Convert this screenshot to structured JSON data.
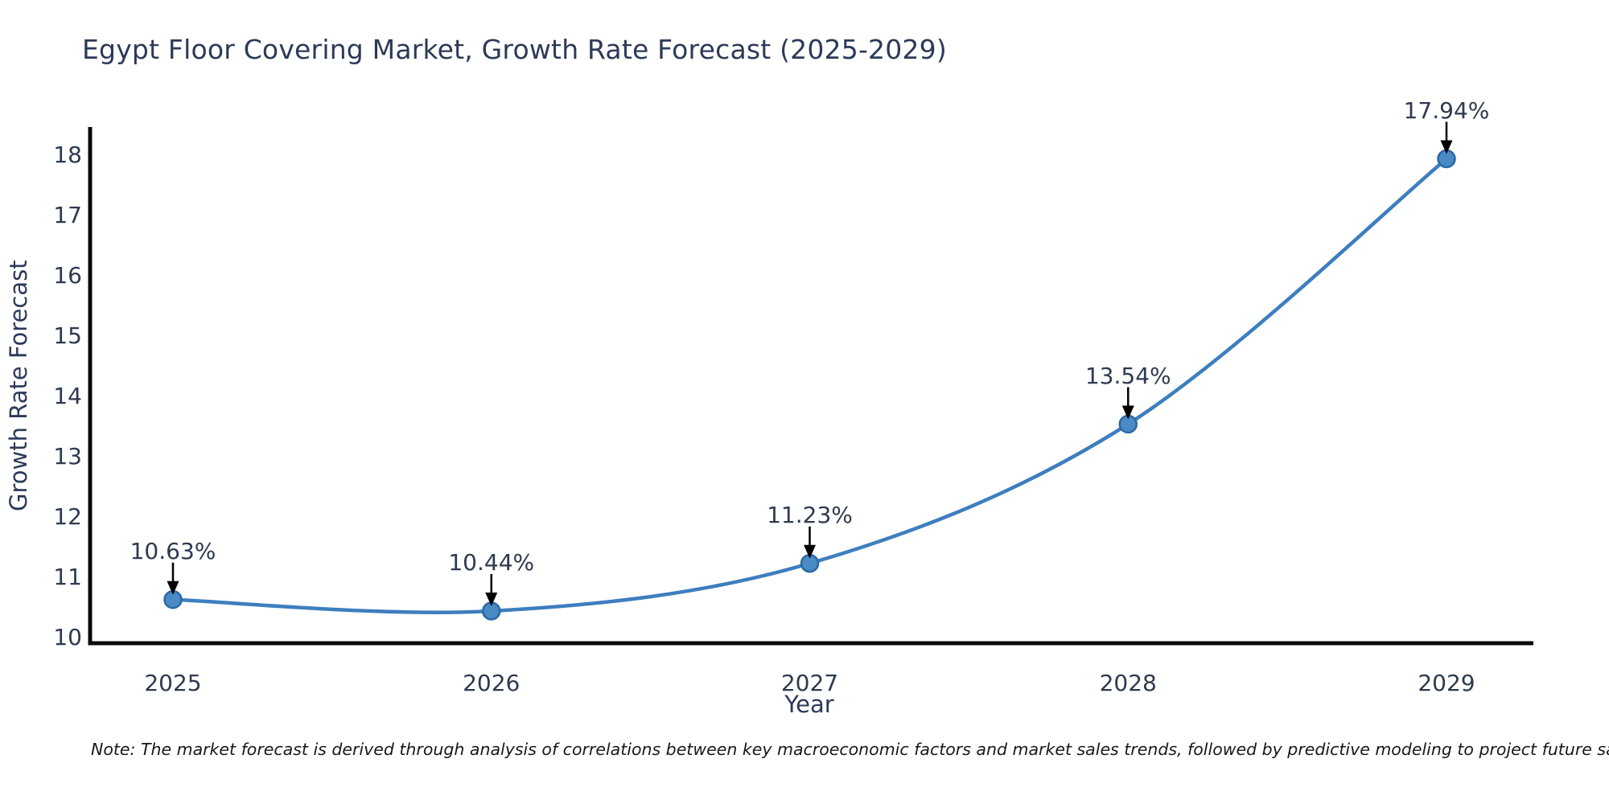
{
  "chart_data": {
    "type": "line",
    "title": "Egypt Floor Covering Market, Growth Rate Forecast (2025-2029)",
    "xlabel": "Year",
    "ylabel": "Growth Rate Forecast",
    "categories": [
      2025,
      2026,
      2027,
      2028,
      2029
    ],
    "series": [
      {
        "name": "Growth Rate Forecast",
        "values": [
          10.63,
          10.44,
          11.23,
          13.54,
          17.94
        ]
      }
    ],
    "point_labels": [
      "10.63%",
      "10.44%",
      "11.23%",
      "13.54%",
      "17.94%"
    ],
    "yticks": [
      10,
      11,
      12,
      13,
      14,
      15,
      16,
      17,
      18
    ],
    "ylim": [
      9.9,
      18.55
    ],
    "xlim": [
      2024.73,
      2029.27
    ],
    "grid": false,
    "legend": "none",
    "smooth": true,
    "line_color": "#3d7ebf",
    "marker_fill": "#4a8ac5",
    "marker_edge": "#2a68a5",
    "spine_color": "#0b0b0b",
    "annotation_arrow_color": "#000000",
    "note": "Note: The market forecast is derived through analysis of correlations between key macroeconomic factors and market sales trends, followed by predictive modeling to project future sales."
  }
}
